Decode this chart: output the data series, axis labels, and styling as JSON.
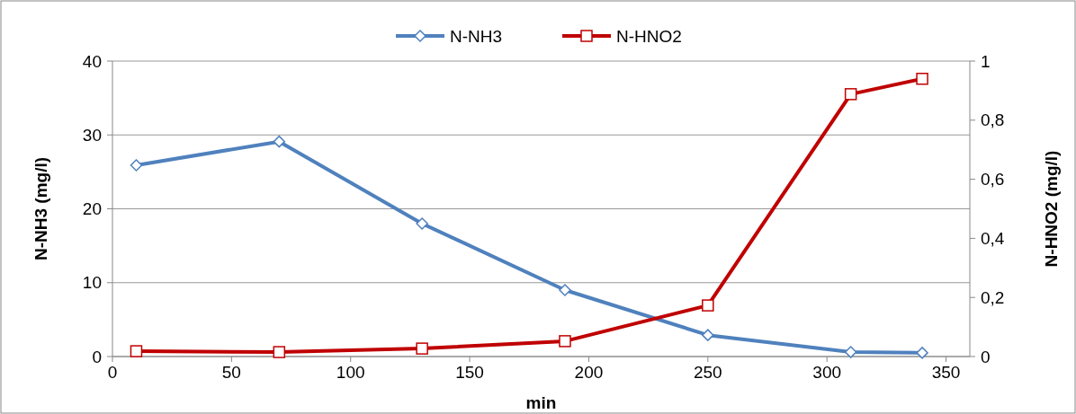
{
  "chart_data": {
    "type": "line",
    "xlabel": "min",
    "ylabel": "N-NH3 (mg/l)",
    "y2label": "N-HNO2 (mg/l)",
    "x": [
      10,
      70,
      130,
      190,
      250,
      310,
      340
    ],
    "series": [
      {
        "name": "N-NH3",
        "color": "#4f81bd",
        "marker": "diamond",
        "values": [
          25.9,
          29.1,
          18,
          9,
          2.9,
          0.6,
          0.5
        ]
      },
      {
        "name": "N-HNO2",
        "color": "#c00000",
        "marker": "square",
        "axis": "y2",
        "values": [
          0.018,
          0.015,
          0.027,
          0.052,
          0.173,
          0.888,
          0.94
        ]
      }
    ],
    "xlim": [
      0,
      360
    ],
    "xticks": [
      0,
      50,
      100,
      150,
      200,
      250,
      300,
      350
    ],
    "ylim": [
      0,
      40
    ],
    "yticks": [
      0,
      10,
      20,
      30,
      40
    ],
    "y2lim": [
      0,
      1
    ],
    "y2ticks": [
      0,
      {
        "value": 0.2,
        "label": "0,2"
      },
      {
        "value": 0.4,
        "label": "0,4"
      },
      {
        "value": 0.6,
        "label": "0,6"
      },
      {
        "value": 0.8,
        "label": "0,8"
      },
      1
    ],
    "grid": "y",
    "legend": "top",
    "line_style": "solid"
  }
}
